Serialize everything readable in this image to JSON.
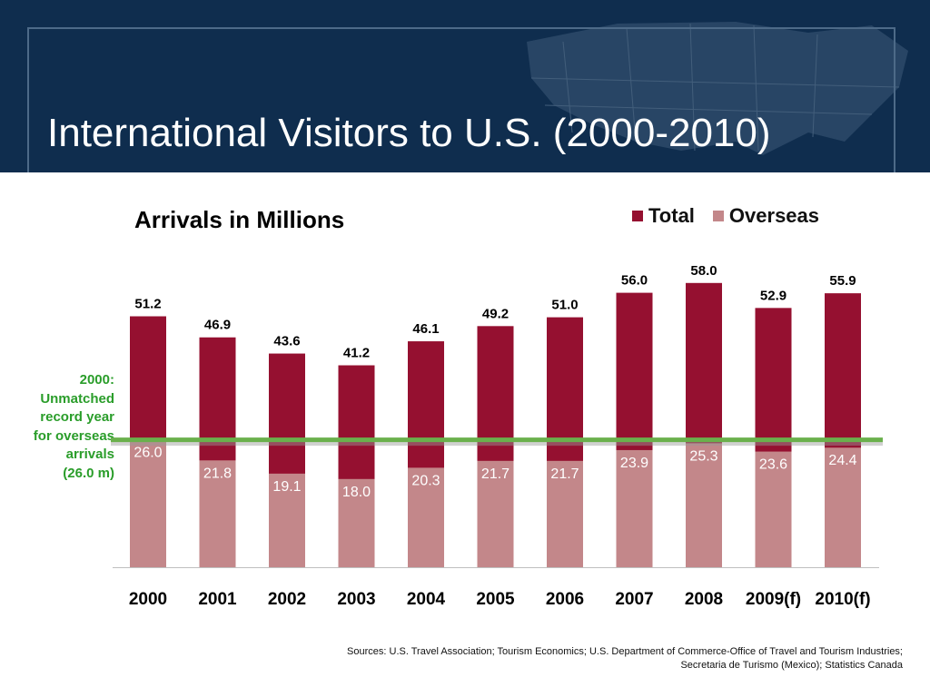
{
  "slide": {
    "title": "International Visitors to U.S. (2000-2010)",
    "sources_line1": "Sources: U.S. Travel Association; Tourism Economics; U.S. Department of Commerce-Office of Travel and Tourism Industries;",
    "sources_line2": "Secretaria de Turismo (Mexico); Statistics Canada",
    "colors": {
      "header_bg": "#0f2d4e",
      "total": "#951030",
      "overseas": "#c3878a",
      "reference_line": "#6ab04c",
      "annotation": "#2a9d2a"
    }
  },
  "chart_data": {
    "type": "bar",
    "subtitle": "Arrivals in Millions",
    "categories": [
      "2000",
      "2001",
      "2002",
      "2003",
      "2004",
      "2005",
      "2006",
      "2007",
      "2008",
      "2009(f)",
      "2010(f)"
    ],
    "series": [
      {
        "name": "Total",
        "values": [
          51.2,
          46.9,
          43.6,
          41.2,
          46.1,
          49.2,
          51.0,
          56.0,
          58.0,
          52.9,
          55.9
        ]
      },
      {
        "name": "Overseas",
        "values": [
          26.0,
          21.8,
          19.1,
          18.0,
          20.3,
          21.7,
          21.7,
          23.9,
          25.3,
          23.6,
          24.4
        ]
      }
    ],
    "total_labels": [
      "51.2",
      "46.9",
      "43.6",
      "41.2",
      "46.1",
      "49.2",
      "51.0",
      "56.0",
      "58.0",
      "52.9",
      "55.9"
    ],
    "overseas_labels": [
      "26.0",
      "21.8",
      "19.1",
      "18.0",
      "20.3",
      "21.7",
      "21.7",
      "23.9",
      "25.3",
      "23.6",
      "24.4"
    ],
    "reference_line": {
      "value": 26.0
    },
    "annotation": "2000:\nUnmatched\nrecord year\nfor overseas\narrivals\n(26.0 m)",
    "legend_position": "top-right",
    "ylim": [
      0,
      60
    ],
    "grid": false,
    "layout": "overlapping"
  }
}
